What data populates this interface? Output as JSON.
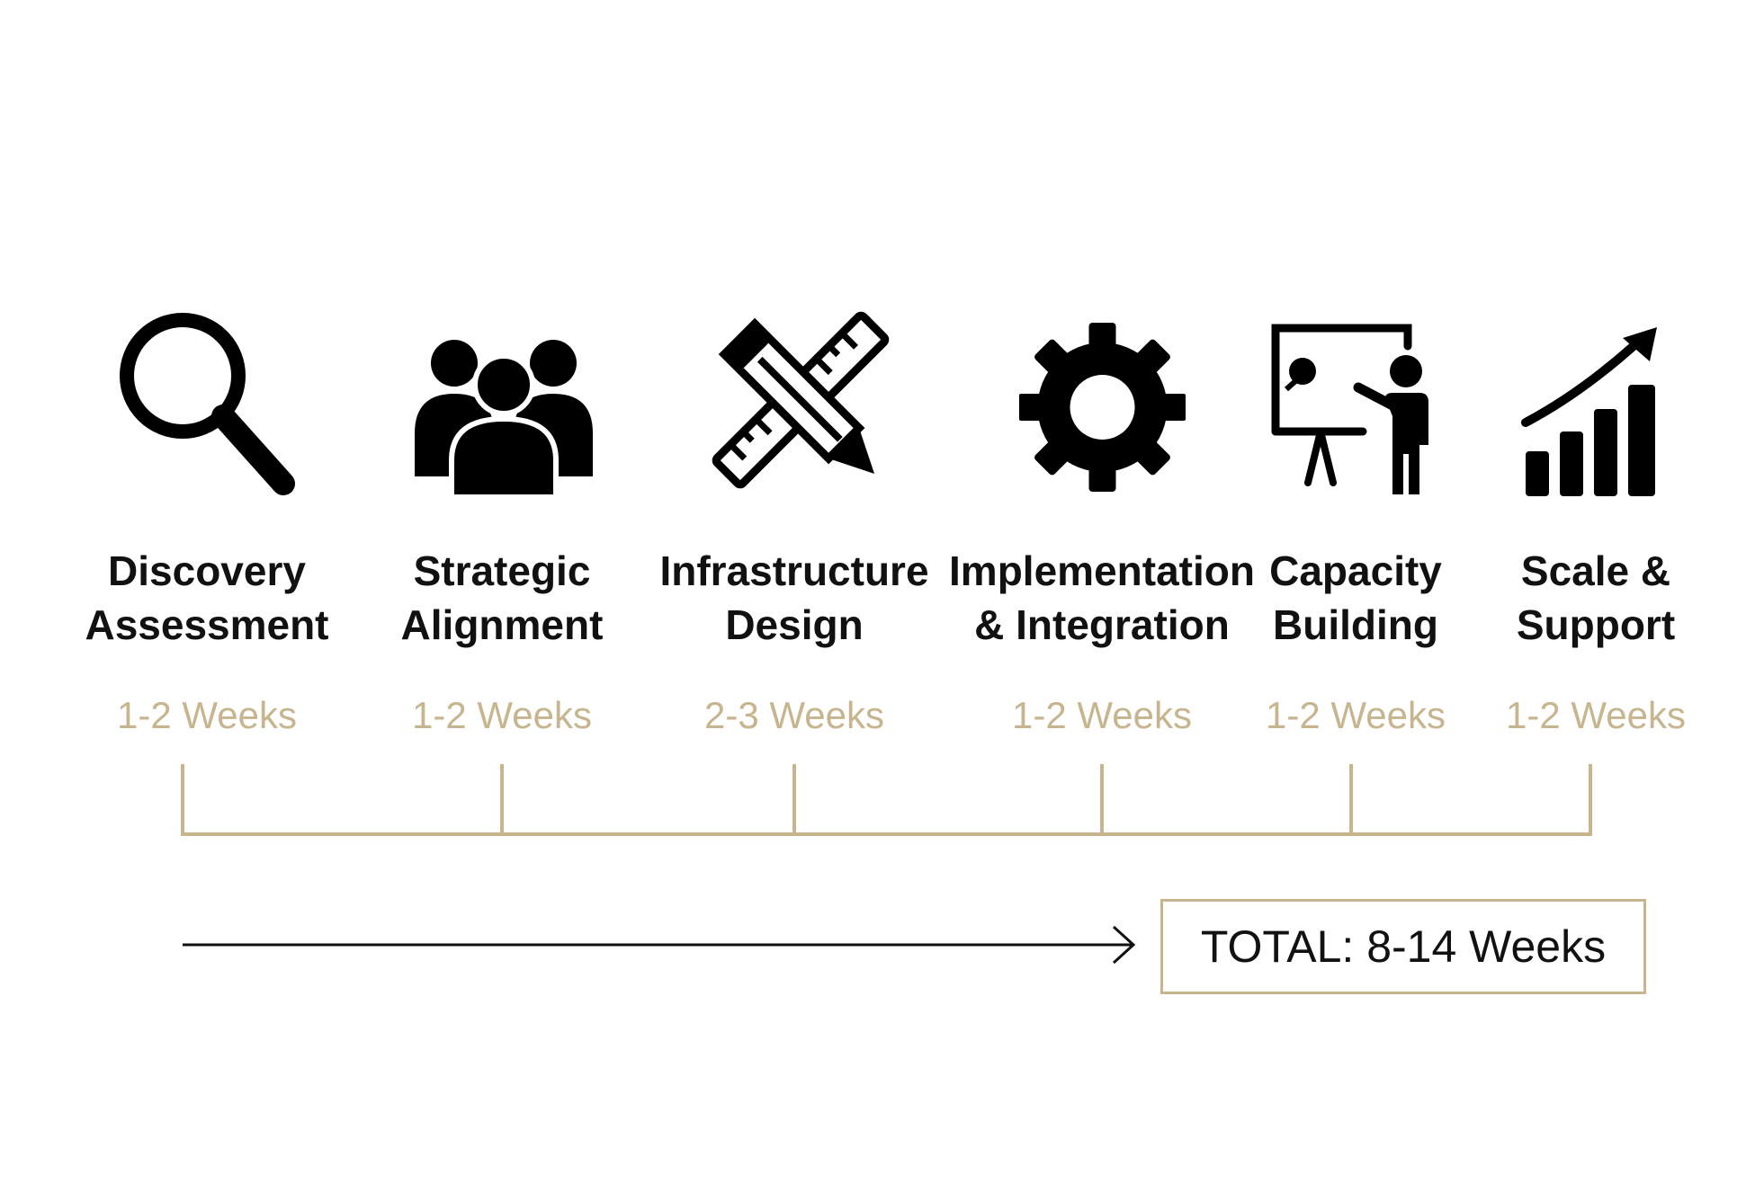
{
  "phases": [
    {
      "name_line1": "Discovery",
      "name_line2": "Assessment",
      "duration": "1-2 Weeks",
      "icon": "magnifying-glass-icon"
    },
    {
      "name_line1": "Strategic",
      "name_line2": "Alignment",
      "duration": "1-2 Weeks",
      "icon": "team-icon"
    },
    {
      "name_line1": "Infrastructure",
      "name_line2": "Design",
      "duration": "2-3 Weeks",
      "icon": "pencil-ruler-icon"
    },
    {
      "name_line1": "Implementation",
      "name_line2": "& Integration",
      "duration": "1-2 Weeks",
      "icon": "gear-icon"
    },
    {
      "name_line1": "Capacity",
      "name_line2": "Building",
      "duration": "1-2 Weeks",
      "icon": "presentation-board-icon"
    },
    {
      "name_line1": "Scale &",
      "name_line2": "Support",
      "duration": "1-2 Weeks",
      "icon": "growth-chart-icon"
    }
  ],
  "total": {
    "label": "TOTAL: 8-14 Weeks"
  },
  "colors": {
    "accent": "#c6b58e",
    "text": "#111111",
    "icon": "#000000"
  }
}
